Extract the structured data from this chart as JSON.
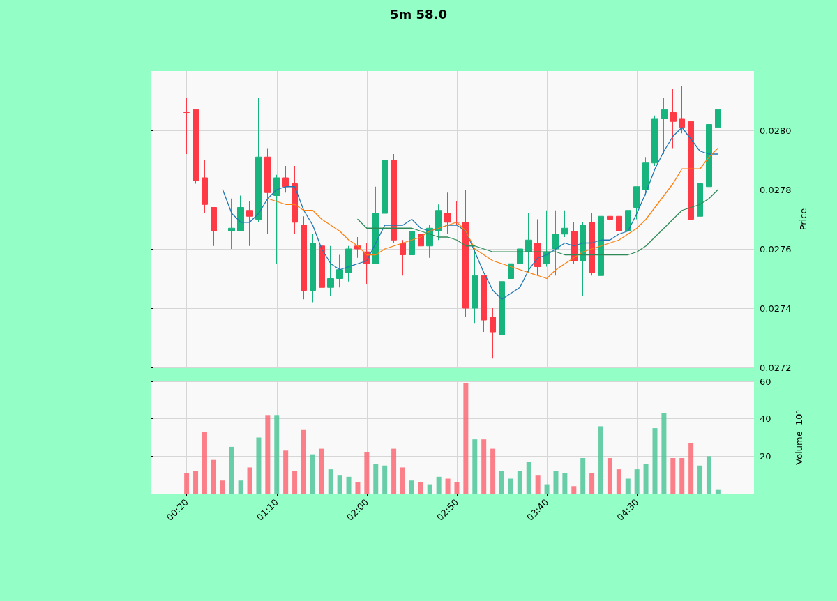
{
  "chart_data": [
    {
      "type": "candlestick",
      "title": "5m 58.0",
      "ylabel": "Price",
      "x": [
        0.3333,
        0.4167,
        0.5,
        0.5833,
        0.6667,
        0.75,
        0.8333,
        0.9167,
        1.0,
        1.0833,
        1.1667,
        1.25,
        1.3333,
        1.4167,
        1.5,
        1.5833,
        1.6667,
        1.75,
        1.8333,
        1.9167,
        2.0,
        2.0833,
        2.1667,
        2.25,
        2.3333,
        2.4167,
        2.5,
        2.5833,
        2.6667,
        2.75,
        2.8333,
        2.9167,
        3.0,
        3.0833,
        3.1667,
        3.25,
        3.3333,
        3.4167,
        3.5,
        3.5833,
        3.6667,
        3.75,
        3.8333,
        3.9167,
        4.0,
        4.0833,
        4.1667,
        4.25,
        4.3333,
        4.4167,
        4.5,
        4.5833,
        4.6667,
        4.75,
        4.8333,
        4.9167,
        5.0,
        5.0833,
        5.1667,
        5.25
      ],
      "ohlc": [
        [
          0.02806,
          0.02811,
          0.02792,
          0.02806
        ],
        [
          0.02807,
          0.02807,
          0.02782,
          0.02783
        ],
        [
          0.02784,
          0.0279,
          0.02772,
          0.02775
        ],
        [
          0.02774,
          0.02774,
          0.02761,
          0.02766
        ],
        [
          0.02766,
          0.02772,
          0.02764,
          0.02766
        ],
        [
          0.02766,
          0.02777,
          0.0276,
          0.02767
        ],
        [
          0.02766,
          0.02778,
          0.02766,
          0.02774
        ],
        [
          0.02773,
          0.02776,
          0.02761,
          0.02771
        ],
        [
          0.0277,
          0.02811,
          0.02769,
          0.02791
        ],
        [
          0.02791,
          0.02794,
          0.02765,
          0.02779
        ],
        [
          0.02778,
          0.02785,
          0.02755,
          0.02784
        ],
        [
          0.02784,
          0.02788,
          0.02779,
          0.02781
        ],
        [
          0.02782,
          0.02788,
          0.02765,
          0.02769
        ],
        [
          0.02768,
          0.02771,
          0.02743,
          0.02746
        ],
        [
          0.02746,
          0.02765,
          0.02742,
          0.02762
        ],
        [
          0.02761,
          0.02762,
          0.02744,
          0.02747
        ],
        [
          0.02747,
          0.02761,
          0.02744,
          0.0275
        ],
        [
          0.0275,
          0.02758,
          0.02747,
          0.02753
        ],
        [
          0.02752,
          0.02761,
          0.02749,
          0.0276
        ],
        [
          0.02761,
          0.02764,
          0.02757,
          0.0276
        ],
        [
          0.02759,
          0.02762,
          0.02748,
          0.02755
        ],
        [
          0.02755,
          0.02781,
          0.02755,
          0.02772
        ],
        [
          0.02772,
          0.0279,
          0.02772,
          0.0279
        ],
        [
          0.0279,
          0.02792,
          0.02762,
          0.02763
        ],
        [
          0.02762,
          0.02763,
          0.02751,
          0.02758
        ],
        [
          0.02758,
          0.02767,
          0.02756,
          0.02766
        ],
        [
          0.02765,
          0.02766,
          0.02753,
          0.02761
        ],
        [
          0.02761,
          0.02768,
          0.02757,
          0.02767
        ],
        [
          0.02766,
          0.02775,
          0.02763,
          0.02773
        ],
        [
          0.02772,
          0.02779,
          0.02765,
          0.02769
        ],
        [
          0.02769,
          0.02776,
          0.02768,
          0.02769
        ],
        [
          0.02769,
          0.0278,
          0.02737,
          0.0274
        ],
        [
          0.0274,
          0.0276,
          0.02735,
          0.02751
        ],
        [
          0.02751,
          0.02751,
          0.02732,
          0.02736
        ],
        [
          0.02737,
          0.0274,
          0.02723,
          0.02732
        ],
        [
          0.02731,
          0.02749,
          0.02729,
          0.02749
        ],
        [
          0.0275,
          0.02759,
          0.02746,
          0.02755
        ],
        [
          0.02755,
          0.02765,
          0.02753,
          0.0276
        ],
        [
          0.02759,
          0.02772,
          0.02752,
          0.02763
        ],
        [
          0.02762,
          0.0277,
          0.02751,
          0.02754
        ],
        [
          0.02755,
          0.02773,
          0.02754,
          0.02759
        ],
        [
          0.0276,
          0.02773,
          0.02751,
          0.02765
        ],
        [
          0.02765,
          0.02773,
          0.02764,
          0.02767
        ],
        [
          0.02766,
          0.02769,
          0.02755,
          0.02756
        ],
        [
          0.02756,
          0.02769,
          0.02744,
          0.02768
        ],
        [
          0.02769,
          0.02772,
          0.02751,
          0.02752
        ],
        [
          0.02751,
          0.02783,
          0.02748,
          0.02771
        ],
        [
          0.02771,
          0.02778,
          0.02757,
          0.0277
        ],
        [
          0.02771,
          0.02785,
          0.02766,
          0.02766
        ],
        [
          0.02766,
          0.02779,
          0.02766,
          0.02773
        ],
        [
          0.02774,
          0.02781,
          0.0277,
          0.02781
        ],
        [
          0.0278,
          0.02791,
          0.02778,
          0.02789
        ],
        [
          0.02789,
          0.02805,
          0.02788,
          0.02804
        ],
        [
          0.02804,
          0.02811,
          0.02792,
          0.02807
        ],
        [
          0.02806,
          0.02814,
          0.02794,
          0.02803
        ],
        [
          0.02804,
          0.02815,
          0.02799,
          0.02801
        ],
        [
          0.02803,
          0.02807,
          0.02766,
          0.0277
        ],
        [
          0.02771,
          0.02784,
          0.0277,
          0.02782
        ],
        [
          0.02781,
          0.02804,
          0.02778,
          0.02802
        ],
        [
          0.02801,
          0.02808,
          0.02801,
          0.02807
        ]
      ],
      "colors": [
        "#fd3a45",
        "#fd3a45",
        "#fd3a45",
        "#fd3a45",
        "#fd3a45",
        "#18b47e",
        "#18b47e",
        "#fd3a45",
        "#18b47e",
        "#fd3a45",
        "#18b47e",
        "#fd3a45",
        "#fd3a45",
        "#fd3a45",
        "#18b47e",
        "#fd3a45",
        "#18b47e",
        "#18b47e",
        "#18b47e",
        "#fd3a45",
        "#fd3a45",
        "#18b47e",
        "#18b47e",
        "#fd3a45",
        "#fd3a45",
        "#18b47e",
        "#fd3a45",
        "#18b47e",
        "#18b47e",
        "#fd3a45",
        "#fd3a45",
        "#fd3a45",
        "#18b47e",
        "#fd3a45",
        "#fd3a45",
        "#18b47e",
        "#18b47e",
        "#18b47e",
        "#18b47e",
        "#fd3a45",
        "#18b47e",
        "#18b47e",
        "#18b47e",
        "#fd3a45",
        "#18b47e",
        "#fd3a45",
        "#18b47e",
        "#fd3a45",
        "#fd3a45",
        "#18b47e",
        "#18b47e",
        "#18b47e",
        "#18b47e",
        "#18b47e",
        "#fd3a45",
        "#fd3a45",
        "#fd3a45",
        "#18b47e",
        "#18b47e",
        "#18b47e"
      ],
      "series": [
        {
          "type": "line",
          "color": "#1f77b4",
          "values": [
            null,
            null,
            null,
            null,
            0.0278,
            0.02772,
            0.02769,
            0.02769,
            0.02772,
            0.02777,
            0.0278,
            0.02781,
            0.02781,
            0.02773,
            0.02768,
            0.0276,
            0.02755,
            0.02753,
            0.02754,
            0.02755,
            0.02756,
            0.02762,
            0.02768,
            0.02768,
            0.02768,
            0.0277,
            0.02767,
            0.02766,
            0.02767,
            0.02768,
            0.02768,
            0.02766,
            0.02759,
            0.02752,
            0.02746,
            0.02743,
            0.02745,
            0.02747,
            0.02753,
            0.02757,
            0.02758,
            0.0276,
            0.02762,
            0.02761,
            0.02762,
            0.02762,
            0.02763,
            0.02763,
            0.02765,
            0.02766,
            0.02772,
            0.02779,
            0.02787,
            0.02793,
            0.02798,
            0.02801,
            0.02797,
            0.02793,
            0.02792,
            0.02792
          ]
        },
        {
          "type": "line",
          "color": "#ff7f0e",
          "values": [
            null,
            null,
            null,
            null,
            null,
            null,
            null,
            null,
            null,
            0.02777,
            0.02776,
            0.02775,
            0.02775,
            0.02773,
            0.02773,
            0.0277,
            0.02768,
            0.02766,
            0.02763,
            0.02761,
            0.02758,
            0.02758,
            0.0276,
            0.02761,
            0.02762,
            0.02763,
            0.02764,
            0.02766,
            0.02767,
            0.02768,
            0.02769,
            0.02766,
            0.0276,
            0.02758,
            0.02756,
            0.02755,
            0.02754,
            0.02753,
            0.02752,
            0.02751,
            0.0275,
            0.02753,
            0.02755,
            0.02757,
            0.02759,
            0.0276,
            0.02761,
            0.02762,
            0.02763,
            0.02765,
            0.02767,
            0.0277,
            0.02774,
            0.02778,
            0.02782,
            0.02787,
            0.02787,
            0.02787,
            0.02791,
            0.02794
          ]
        },
        {
          "type": "line",
          "color": "#2e8b57",
          "values": [
            null,
            null,
            null,
            null,
            null,
            null,
            null,
            null,
            null,
            null,
            null,
            null,
            null,
            null,
            null,
            null,
            null,
            null,
            null,
            0.0277,
            0.02767,
            0.02767,
            0.02767,
            0.02767,
            0.02767,
            0.02767,
            0.02766,
            0.02765,
            0.02764,
            0.02764,
            0.02763,
            0.02761,
            0.02761,
            0.0276,
            0.02759,
            0.02759,
            0.02759,
            0.02759,
            0.02759,
            0.02759,
            0.02759,
            0.02759,
            0.02758,
            0.02758,
            0.02758,
            0.02758,
            0.02758,
            0.02758,
            0.02758,
            0.02758,
            0.02759,
            0.02761,
            0.02764,
            0.02767,
            0.0277,
            0.02773,
            0.02774,
            0.02775,
            0.02777,
            0.0278
          ]
        }
      ],
      "xlim": [
        0,
        5.5833
      ],
      "xticks": [
        {
          "value": 0.3333,
          "label": null
        },
        {
          "value": 1.1667,
          "label": null
        },
        {
          "value": 2.0,
          "label": null
        },
        {
          "value": 2.8333,
          "label": null
        },
        {
          "value": 3.6667,
          "label": null
        },
        {
          "value": 4.5,
          "label": null
        },
        {
          "value": 5.3333,
          "label": null
        }
      ],
      "ylim": [
        0.0272,
        0.0282
      ],
      "yticks": [
        0.0272,
        0.0274,
        0.0276,
        0.0278,
        {
          "value": 0.028,
          "label": "0.0280"
        }
      ],
      "grid": true,
      "tick_labels": "y",
      "marker": "none"
    },
    {
      "type": "bar",
      "ylabel": "Volume  10⁶",
      "x": [
        0.3333,
        0.4167,
        0.5,
        0.5833,
        0.6667,
        0.75,
        0.8333,
        0.9167,
        1.0,
        1.0833,
        1.1667,
        1.25,
        1.3333,
        1.4167,
        1.5,
        1.5833,
        1.6667,
        1.75,
        1.8333,
        1.9167,
        2.0,
        2.0833,
        2.1667,
        2.25,
        2.3333,
        2.4167,
        2.5,
        2.5833,
        2.6667,
        2.75,
        2.8333,
        2.9167,
        3.0,
        3.0833,
        3.1667,
        3.25,
        3.3333,
        3.4167,
        3.5,
        3.5833,
        3.6667,
        3.75,
        3.8333,
        3.9167,
        4.0,
        4.0833,
        4.1667,
        4.25,
        4.3333,
        4.4167,
        4.5,
        4.5833,
        4.6667,
        4.75,
        4.8333,
        4.9167,
        5.0,
        5.0833,
        5.1667,
        5.25
      ],
      "values": [
        11,
        12,
        33,
        18,
        7,
        25,
        7,
        14,
        30,
        42,
        42,
        23,
        12,
        34,
        21,
        24,
        13,
        10,
        9,
        6,
        22,
        16,
        15,
        24,
        14,
        7,
        6,
        5,
        9,
        8,
        6,
        59,
        29,
        29,
        24,
        12,
        8,
        12,
        17,
        10,
        5,
        12,
        11,
        4,
        19,
        11,
        36,
        19,
        13,
        8,
        13,
        16,
        35,
        43,
        19,
        19,
        27,
        15,
        20,
        2
      ],
      "colors": [
        "#fc6a74",
        "#fc6a74",
        "#fc6a74",
        "#fc6a74",
        "#fc6a74",
        "#4dc79a",
        "#4dc79a",
        "#fc6a74",
        "#4dc79a",
        "#fc6a74",
        "#4dc79a",
        "#fc6a74",
        "#fc6a74",
        "#fc6a74",
        "#4dc79a",
        "#fc6a74",
        "#4dc79a",
        "#4dc79a",
        "#4dc79a",
        "#fc6a74",
        "#fc6a74",
        "#4dc79a",
        "#4dc79a",
        "#fc6a74",
        "#fc6a74",
        "#4dc79a",
        "#fc6a74",
        "#4dc79a",
        "#4dc79a",
        "#fc6a74",
        "#fc6a74",
        "#fc6a74",
        "#4dc79a",
        "#fc6a74",
        "#fc6a74",
        "#4dc79a",
        "#4dc79a",
        "#4dc79a",
        "#4dc79a",
        "#fc6a74",
        "#4dc79a",
        "#4dc79a",
        "#4dc79a",
        "#fc6a74",
        "#4dc79a",
        "#fc6a74",
        "#4dc79a",
        "#fc6a74",
        "#fc6a74",
        "#4dc79a",
        "#4dc79a",
        "#4dc79a",
        "#4dc79a",
        "#4dc79a",
        "#fc6a74",
        "#fc6a74",
        "#fc6a74",
        "#4dc79a",
        "#4dc79a",
        "#4dc79a"
      ],
      "xlim": [
        0,
        5.5833
      ],
      "xticks": [
        {
          "value": 0.3333,
          "label": "00:20"
        },
        {
          "value": 1.1667,
          "label": "01:10"
        },
        {
          "value": 2.0,
          "label": "02:00"
        },
        {
          "value": 2.8333,
          "label": "02:50"
        },
        {
          "value": 3.6667,
          "label": "03:40"
        },
        {
          "value": 4.5,
          "label": "04:30"
        },
        {
          "value": 5.3333,
          "label": null
        }
      ],
      "ylim": [
        0,
        60
      ],
      "yticks": [
        20,
        40,
        60
      ],
      "grid": true
    }
  ]
}
